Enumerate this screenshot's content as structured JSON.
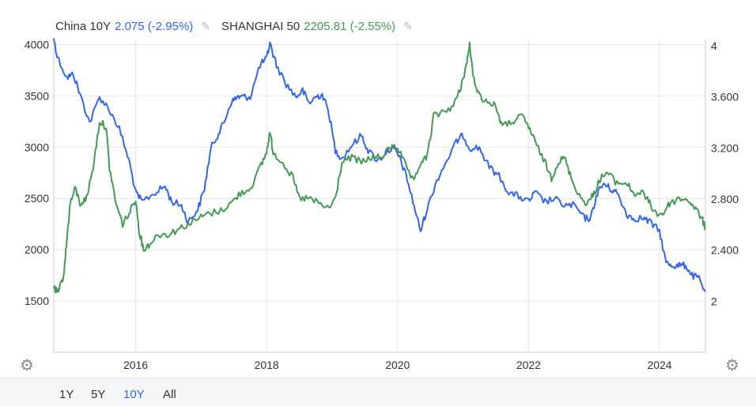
{
  "legend": {
    "series1_name": "China 10Y",
    "series1_value": "2.075 (-2.95%)",
    "series2_name": "SHANGHAI 50",
    "series2_value": "2205.81 (-2.55%)",
    "edit_icon": "pencil-icon"
  },
  "range_buttons": [
    "1Y",
    "5Y",
    "10Y",
    "All"
  ],
  "active_range": "10Y",
  "icons": {
    "settings_left": "gear-icon",
    "settings_right": "gear-icon"
  },
  "colors": {
    "china": "#3366ee",
    "shanghai": "#449955",
    "grid": "#e6e6e6"
  },
  "chart_data": {
    "type": "line",
    "x_ticks": [
      2016,
      2018,
      2020,
      2022,
      2024
    ],
    "x_range": [
      2014.75,
      2024.7
    ],
    "left_axis": {
      "ticks": [
        "1500",
        "2000",
        "2500",
        "3000",
        "3500",
        "4000"
      ],
      "range": [
        1000,
        4050
      ]
    },
    "right_axis": {
      "ticks": [
        "2",
        "2.400",
        "2.800",
        "3.200",
        "3.600",
        "4"
      ],
      "range": [
        1.6,
        4.05
      ]
    },
    "grid": true,
    "series": [
      {
        "name": "China 10Y",
        "axis": "right",
        "points": [
          [
            2014.75,
            4.06
          ],
          [
            2014.8,
            3.92
          ],
          [
            2014.95,
            3.75
          ],
          [
            2015.05,
            3.78
          ],
          [
            2015.15,
            3.62
          ],
          [
            2015.3,
            3.4
          ],
          [
            2015.45,
            3.6
          ],
          [
            2015.6,
            3.5
          ],
          [
            2015.75,
            3.35
          ],
          [
            2015.9,
            3.1
          ],
          [
            2016.0,
            2.85
          ],
          [
            2016.1,
            2.78
          ],
          [
            2016.3,
            2.85
          ],
          [
            2016.45,
            2.9
          ],
          [
            2016.55,
            2.78
          ],
          [
            2016.7,
            2.75
          ],
          [
            2016.8,
            2.62
          ],
          [
            2016.95,
            2.72
          ],
          [
            2017.05,
            2.88
          ],
          [
            2017.15,
            3.2
          ],
          [
            2017.25,
            3.3
          ],
          [
            2017.35,
            3.4
          ],
          [
            2017.45,
            3.55
          ],
          [
            2017.55,
            3.6
          ],
          [
            2017.65,
            3.6
          ],
          [
            2017.75,
            3.6
          ],
          [
            2017.9,
            3.85
          ],
          [
            2018.0,
            3.9
          ],
          [
            2018.05,
            4.02
          ],
          [
            2018.15,
            3.85
          ],
          [
            2018.3,
            3.7
          ],
          [
            2018.45,
            3.6
          ],
          [
            2018.55,
            3.65
          ],
          [
            2018.65,
            3.55
          ],
          [
            2018.75,
            3.6
          ],
          [
            2018.85,
            3.62
          ],
          [
            2018.95,
            3.48
          ],
          [
            2019.05,
            3.18
          ],
          [
            2019.15,
            3.12
          ],
          [
            2019.3,
            3.22
          ],
          [
            2019.45,
            3.3
          ],
          [
            2019.55,
            3.18
          ],
          [
            2019.7,
            3.1
          ],
          [
            2019.85,
            3.18
          ],
          [
            2019.95,
            3.2
          ],
          [
            2020.05,
            3.1
          ],
          [
            2020.15,
            2.95
          ],
          [
            2020.25,
            2.75
          ],
          [
            2020.35,
            2.55
          ],
          [
            2020.45,
            2.72
          ],
          [
            2020.6,
            2.95
          ],
          [
            2020.75,
            3.1
          ],
          [
            2020.9,
            3.25
          ],
          [
            2021.0,
            3.3
          ],
          [
            2021.1,
            3.2
          ],
          [
            2021.25,
            3.2
          ],
          [
            2021.4,
            3.05
          ],
          [
            2021.55,
            2.98
          ],
          [
            2021.7,
            2.85
          ],
          [
            2021.85,
            2.82
          ],
          [
            2022.0,
            2.78
          ],
          [
            2022.1,
            2.85
          ],
          [
            2022.25,
            2.78
          ],
          [
            2022.4,
            2.8
          ],
          [
            2022.55,
            2.75
          ],
          [
            2022.7,
            2.75
          ],
          [
            2022.85,
            2.65
          ],
          [
            2022.95,
            2.65
          ],
          [
            2023.05,
            2.85
          ],
          [
            2023.15,
            2.92
          ],
          [
            2023.25,
            2.88
          ],
          [
            2023.35,
            2.85
          ],
          [
            2023.5,
            2.68
          ],
          [
            2023.6,
            2.65
          ],
          [
            2023.75,
            2.65
          ],
          [
            2023.85,
            2.62
          ],
          [
            2024.0,
            2.55
          ],
          [
            2024.1,
            2.3
          ],
          [
            2024.2,
            2.28
          ],
          [
            2024.3,
            2.28
          ],
          [
            2024.4,
            2.28
          ],
          [
            2024.5,
            2.2
          ],
          [
            2024.6,
            2.18
          ],
          [
            2024.7,
            2.075
          ]
        ]
      },
      {
        "name": "SHANGHAI 50",
        "axis": "left",
        "points": [
          [
            2014.75,
            1620
          ],
          [
            2014.82,
            1580
          ],
          [
            2014.9,
            1750
          ],
          [
            2014.95,
            2100
          ],
          [
            2015.0,
            2450
          ],
          [
            2015.08,
            2600
          ],
          [
            2015.15,
            2450
          ],
          [
            2015.25,
            2500
          ],
          [
            2015.35,
            2800
          ],
          [
            2015.45,
            3250
          ],
          [
            2015.55,
            3200
          ],
          [
            2015.6,
            2800
          ],
          [
            2015.7,
            2450
          ],
          [
            2015.8,
            2250
          ],
          [
            2015.9,
            2350
          ],
          [
            2016.0,
            2500
          ],
          [
            2016.05,
            2200
          ],
          [
            2016.12,
            2000
          ],
          [
            2016.2,
            2050
          ],
          [
            2016.35,
            2150
          ],
          [
            2016.5,
            2150
          ],
          [
            2016.65,
            2200
          ],
          [
            2016.8,
            2250
          ],
          [
            2016.95,
            2300
          ],
          [
            2017.1,
            2350
          ],
          [
            2017.3,
            2380
          ],
          [
            2017.45,
            2450
          ],
          [
            2017.6,
            2550
          ],
          [
            2017.75,
            2600
          ],
          [
            2017.9,
            2800
          ],
          [
            2018.0,
            2950
          ],
          [
            2018.05,
            3150
          ],
          [
            2018.1,
            2950
          ],
          [
            2018.25,
            2850
          ],
          [
            2018.4,
            2700
          ],
          [
            2018.5,
            2500
          ],
          [
            2018.65,
            2500
          ],
          [
            2018.8,
            2450
          ],
          [
            2018.95,
            2400
          ],
          [
            2019.05,
            2500
          ],
          [
            2019.15,
            2850
          ],
          [
            2019.3,
            2900
          ],
          [
            2019.45,
            2850
          ],
          [
            2019.6,
            2900
          ],
          [
            2019.75,
            2900
          ],
          [
            2019.9,
            3000
          ],
          [
            2020.0,
            3000
          ],
          [
            2020.1,
            2850
          ],
          [
            2020.25,
            2650
          ],
          [
            2020.35,
            2850
          ],
          [
            2020.45,
            2900
          ],
          [
            2020.55,
            3300
          ],
          [
            2020.7,
            3350
          ],
          [
            2020.85,
            3400
          ],
          [
            2020.95,
            3550
          ],
          [
            2021.05,
            3800
          ],
          [
            2021.1,
            4000
          ],
          [
            2021.15,
            3700
          ],
          [
            2021.25,
            3500
          ],
          [
            2021.35,
            3450
          ],
          [
            2021.5,
            3400
          ],
          [
            2021.6,
            3200
          ],
          [
            2021.75,
            3250
          ],
          [
            2021.9,
            3300
          ],
          [
            2022.0,
            3200
          ],
          [
            2022.1,
            3050
          ],
          [
            2022.25,
            2850
          ],
          [
            2022.35,
            2700
          ],
          [
            2022.45,
            2850
          ],
          [
            2022.55,
            2900
          ],
          [
            2022.65,
            2700
          ],
          [
            2022.8,
            2500
          ],
          [
            2022.9,
            2450
          ],
          [
            2023.0,
            2550
          ],
          [
            2023.1,
            2700
          ],
          [
            2023.2,
            2750
          ],
          [
            2023.35,
            2650
          ],
          [
            2023.5,
            2650
          ],
          [
            2023.6,
            2550
          ],
          [
            2023.75,
            2550
          ],
          [
            2023.85,
            2450
          ],
          [
            2023.95,
            2350
          ],
          [
            2024.05,
            2350
          ],
          [
            2024.15,
            2450
          ],
          [
            2024.3,
            2500
          ],
          [
            2024.45,
            2480
          ],
          [
            2024.55,
            2400
          ],
          [
            2024.65,
            2300
          ],
          [
            2024.7,
            2205.81
          ]
        ]
      }
    ]
  }
}
